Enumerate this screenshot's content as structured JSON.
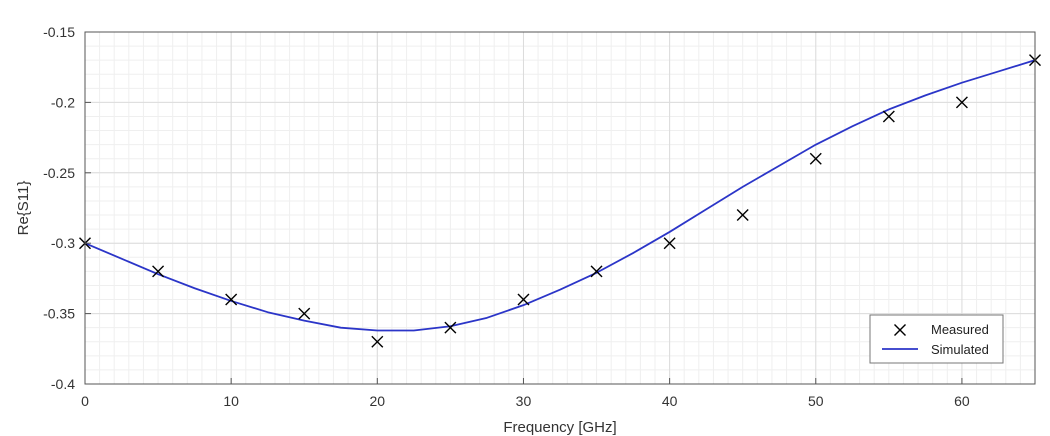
{
  "chart_data": {
    "type": "line",
    "xlabel": "Frequency [GHz]",
    "ylabel": "Re{S11}",
    "xlim": [
      0,
      65
    ],
    "ylim": [
      -0.4,
      -0.15
    ],
    "xticks": [
      0,
      10,
      20,
      30,
      40,
      50,
      60
    ],
    "xtick_labels": [
      "0",
      "10",
      "20",
      "30",
      "40",
      "50",
      "60"
    ],
    "yticks": [
      -0.4,
      -0.35,
      -0.3,
      -0.25,
      -0.2,
      -0.15
    ],
    "ytick_labels": [
      "-0.4",
      "-0.35",
      "-0.3",
      "-0.25",
      "-0.2",
      "-0.15"
    ],
    "grid": true,
    "minor_grid": true,
    "legend_position": "bottom-right",
    "series": [
      {
        "name": "Measured",
        "kind": "scatter",
        "marker": "x",
        "color": "#000000",
        "x": [
          0,
          5,
          10,
          15,
          20,
          25,
          30,
          35,
          40,
          45,
          50,
          55,
          60,
          65
        ],
        "y": [
          -0.3,
          -0.32,
          -0.34,
          -0.35,
          -0.37,
          -0.36,
          -0.34,
          -0.32,
          -0.3,
          -0.28,
          -0.24,
          -0.21,
          -0.2,
          -0.17
        ]
      },
      {
        "name": "Simulated",
        "kind": "line",
        "color": "#2b35c8",
        "x": [
          0,
          2.5,
          5,
          7.5,
          10,
          12.5,
          15,
          17.5,
          20,
          22.5,
          25,
          27.5,
          30,
          32.5,
          35,
          37.5,
          40,
          42.5,
          45,
          47.5,
          50,
          52.5,
          55,
          57.5,
          60,
          62.5,
          65
        ],
        "y": [
          -0.3,
          -0.311,
          -0.322,
          -0.332,
          -0.341,
          -0.349,
          -0.355,
          -0.36,
          -0.362,
          -0.362,
          -0.359,
          -0.353,
          -0.344,
          -0.333,
          -0.321,
          -0.307,
          -0.292,
          -0.276,
          -0.26,
          -0.245,
          -0.23,
          -0.217,
          -0.205,
          -0.195,
          -0.186,
          -0.178,
          -0.17
        ]
      }
    ]
  }
}
